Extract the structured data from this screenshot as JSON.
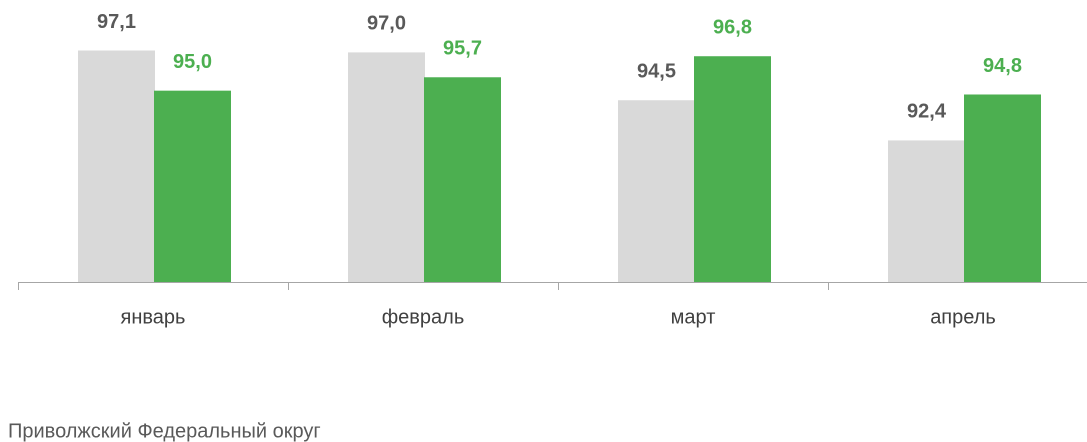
{
  "chart_data": {
    "type": "bar",
    "categories": [
      "январь",
      "февраль",
      "март",
      "апрель"
    ],
    "series": [
      {
        "color": "#d9d9d9",
        "label_color": "#595959",
        "values": [
          97.1,
          97.0,
          94.5,
          92.4
        ],
        "value_labels": [
          "97,1",
          "97,0",
          "94,5",
          "92,4"
        ]
      },
      {
        "name": "Приволжский Федеральный округ",
        "color": "#4caf50",
        "label_color": "#4caf50",
        "values": [
          95.0,
          95.7,
          96.8,
          94.8
        ],
        "value_labels": [
          "95,0",
          "95,7",
          "96,8",
          "94,8"
        ]
      }
    ],
    "ylim": [
      85,
      100
    ]
  }
}
